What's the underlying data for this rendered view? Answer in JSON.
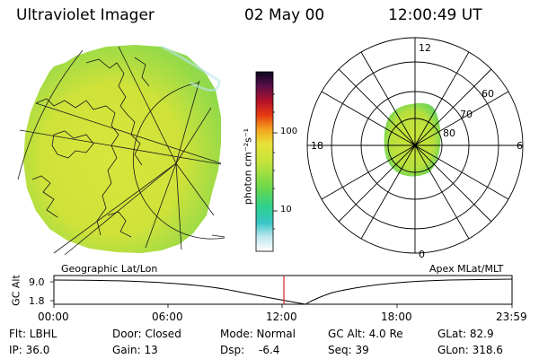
{
  "header": {
    "instrument": "Ultraviolet Imager",
    "date": "02 May 00",
    "time": "12:00:49 UT"
  },
  "colorbar": {
    "unit_label": "photon cm⁻²s⁻¹",
    "ticks": [
      "100",
      "10"
    ]
  },
  "left_panel": {
    "caption": "Geographic Lat/Lon"
  },
  "polar_panel": {
    "caption": "Apex MLat/MLT",
    "mlt_labels": {
      "top": "12",
      "bottom": "0",
      "left": "18",
      "right": "6"
    },
    "mlat_labels": [
      "60",
      "70",
      "80"
    ]
  },
  "timeline": {
    "ylabel": "GC Alt",
    "yticks": [
      "9.0",
      "1.8"
    ],
    "xticks": [
      "00:00",
      "06:00",
      "12:00",
      "18:00",
      "23:59"
    ]
  },
  "footer": {
    "flt": "Flt: LBHL",
    "door": "Door: Closed",
    "mode": "Mode: Normal",
    "gc_alt": "GC Alt: 4.0 Re",
    "glat": "GLat: 82.9",
    "ip": "IP: 36.0",
    "gain": "Gain: 13",
    "dsp_label": "Dsp:",
    "dsp_value": "-6.4",
    "seq": "Seq: 39",
    "glon": "GLon: 318.6"
  }
}
